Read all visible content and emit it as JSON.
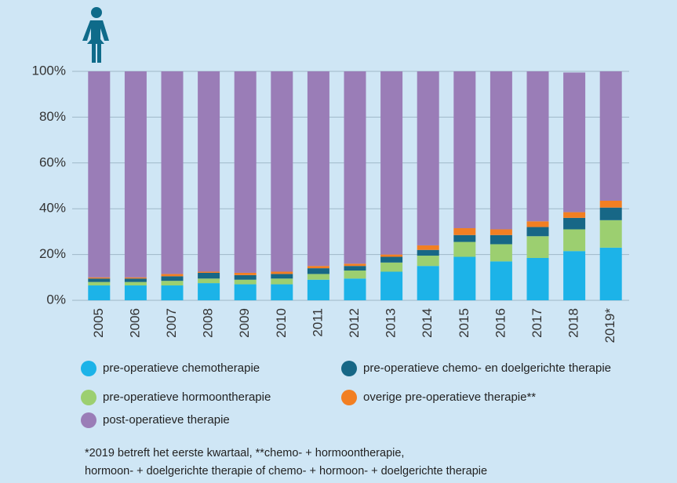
{
  "chart_data": {
    "type": "stacked_bar",
    "categories": [
      "2005",
      "2006",
      "2007",
      "2008",
      "2009",
      "2010",
      "2011",
      "2012",
      "2013",
      "2014",
      "2015",
      "2016",
      "2017",
      "2018",
      "2019*"
    ],
    "series": [
      {
        "name": "pre-operatieve chemotherapie",
        "color": "#1cb3e8",
        "values": [
          6.5,
          6.5,
          6.5,
          7.5,
          7,
          7,
          9,
          9.5,
          12.5,
          15,
          19,
          17,
          18.5,
          21.5,
          23
        ]
      },
      {
        "name": "pre-operatieve hormoontherapie",
        "color": "#9ccf70",
        "values": [
          1.5,
          1.5,
          2,
          2,
          2,
          2.5,
          2.5,
          3.5,
          4,
          4.5,
          6.5,
          7.5,
          9.5,
          9.5,
          12
        ]
      },
      {
        "name": "pre-operatieve chemo- en doelgerichte therapie",
        "color": "#176786",
        "values": [
          1.5,
          1.5,
          2,
          2.5,
          2,
          2,
          2.5,
          2,
          2.5,
          2.5,
          3,
          4,
          4,
          5,
          5.5
        ]
      },
      {
        "name": "overige pre-operatieve therapie**",
        "color": "#f27f22",
        "values": [
          0.5,
          0.5,
          1,
          0.5,
          1,
          1,
          1,
          1,
          1,
          2,
          3,
          2.5,
          2.5,
          2.5,
          3
        ]
      },
      {
        "name": "post-operatieve therapie",
        "color": "#9a7db7",
        "values": [
          90,
          90,
          88.5,
          87.5,
          88,
          87.5,
          85,
          84,
          80,
          76,
          68.5,
          69,
          65.5,
          61,
          56.5
        ]
      }
    ],
    "legend_order": [
      0,
      2,
      1,
      3,
      4
    ],
    "ylim": [
      0,
      100
    ],
    "yticks": [
      {
        "value": 0,
        "label": "0%"
      },
      {
        "value": 20,
        "label": "20%"
      },
      {
        "value": 40,
        "label": "40%"
      },
      {
        "value": 60,
        "label": "60%"
      },
      {
        "value": 80,
        "label": "80%"
      },
      {
        "value": 100,
        "label": "100%"
      }
    ],
    "grid": true,
    "notes": [
      "*2019 betreft het eerste kwartaal, **chemo- + hormoontherapie,",
      "hormoon- + doelgerichte therapie of  chemo- + hormoon- + doelgerichte therapie"
    ]
  }
}
